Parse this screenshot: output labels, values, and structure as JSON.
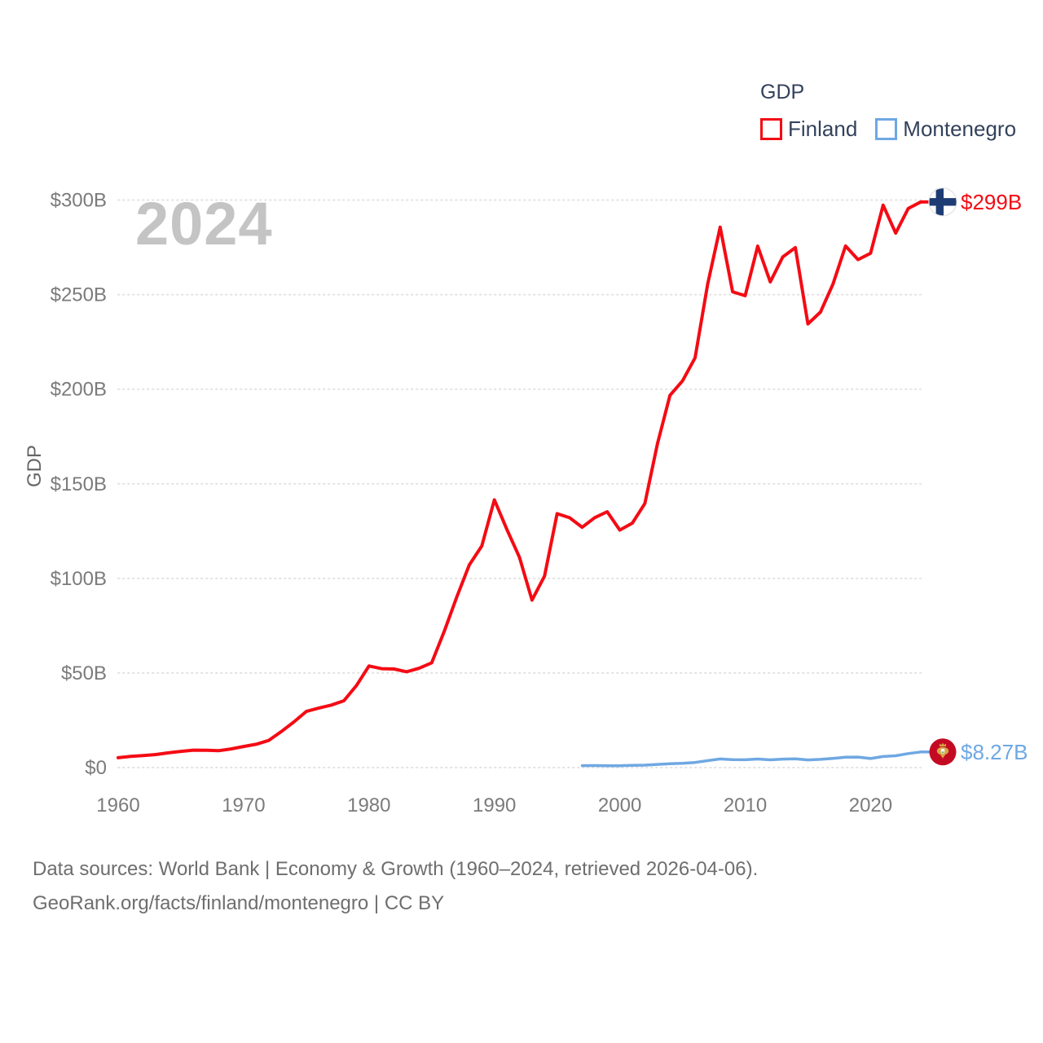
{
  "watermark": "2024",
  "legend": {
    "title": "GDP",
    "items": [
      {
        "label": "Finland",
        "color": "#f40b14"
      },
      {
        "label": "Montenegro",
        "color": "#6fa8e3"
      }
    ]
  },
  "y_axis": {
    "title": "GDP"
  },
  "footer": {
    "line1": "Data sources: World Bank | Economy & Growth (1960–2024, retrieved 2026-04-06).",
    "line2": "GeoRank.org/facts/finland/montenegro | CC BY"
  },
  "colors": {
    "finland_line": "#f40b14",
    "montenegro_line": "#6fa8e3",
    "legend_text": "#33415c",
    "tick_text": "#7b7b7b",
    "gridline": "#e3e3e3",
    "watermark": "#c4c4c4",
    "footer_text": "#6e6e6e",
    "finland_flag_cross": "#1e3c74",
    "montenegro_flag_red": "#c40a23",
    "montenegro_flag_gold": "#d7a546"
  },
  "chart_data": {
    "type": "line",
    "title": "GDP",
    "xlabel": "",
    "ylabel": "GDP",
    "xlim": [
      1960,
      2024
    ],
    "ylim": [
      0,
      300
    ],
    "grid": "horizontal-dotted",
    "legend_position": "top-right",
    "watermark_year": "2024",
    "y_ticks": [
      {
        "label": "$0",
        "value": 0
      },
      {
        "label": "$50B",
        "value": 50
      },
      {
        "label": "$100B",
        "value": 100
      },
      {
        "label": "$150B",
        "value": 150
      },
      {
        "label": "$200B",
        "value": 200
      },
      {
        "label": "$250B",
        "value": 250
      },
      {
        "label": "$300B",
        "value": 300
      }
    ],
    "x_ticks": [
      {
        "label": "1960",
        "value": 1960
      },
      {
        "label": "1970",
        "value": 1970
      },
      {
        "label": "1980",
        "value": 1980
      },
      {
        "label": "1990",
        "value": 1990
      },
      {
        "label": "2000",
        "value": 2000
      },
      {
        "label": "2010",
        "value": 2010
      },
      {
        "label": "2020",
        "value": 2020
      }
    ],
    "series": [
      {
        "name": "Finland",
        "color": "#f40b14",
        "stroke_width": 4,
        "start_year": 1960,
        "end_year": 2024,
        "end_label": "$299B",
        "end_marker": "finland-flag",
        "values": [
          5.22,
          5.92,
          6.34,
          6.89,
          7.78,
          8.59,
          9.21,
          9.17,
          8.9,
          9.88,
          11.16,
          12.34,
          14.36,
          19.0,
          24.07,
          29.67,
          31.47,
          33.04,
          35.33,
          43.35,
          53.71,
          52.28,
          52.1,
          50.66,
          52.51,
          55.37,
          72.0,
          90.12,
          107.08,
          117.14,
          141.52,
          125.86,
          111.17,
          88.56,
          101.28,
          134.2,
          132.07,
          127.03,
          132.12,
          135.25,
          125.54,
          129.23,
          139.58,
          171.07,
          196.77,
          204.44,
          216.55,
          255.38,
          285.64,
          251.5,
          249.42,
          275.6,
          256.71,
          269.98,
          274.86,
          234.53,
          240.77,
          255.65,
          275.71,
          268.51,
          271.89,
          297.3,
          282.51,
          295.53,
          299.0
        ]
      },
      {
        "name": "Montenegro",
        "color": "#6fa8e3",
        "stroke_width": 3.5,
        "start_year": 1997,
        "end_year": 2024,
        "end_label": "$8.27B",
        "end_marker": "montenegro-flag",
        "values": [
          1.04,
          1.07,
          0.98,
          0.98,
          1.16,
          1.28,
          1.7,
          2.07,
          2.26,
          2.72,
          3.68,
          4.55,
          4.16,
          4.14,
          4.54,
          4.09,
          4.46,
          4.59,
          4.05,
          4.37,
          4.86,
          5.51,
          5.54,
          4.79,
          5.86,
          6.23,
          7.4,
          8.27
        ]
      }
    ]
  }
}
